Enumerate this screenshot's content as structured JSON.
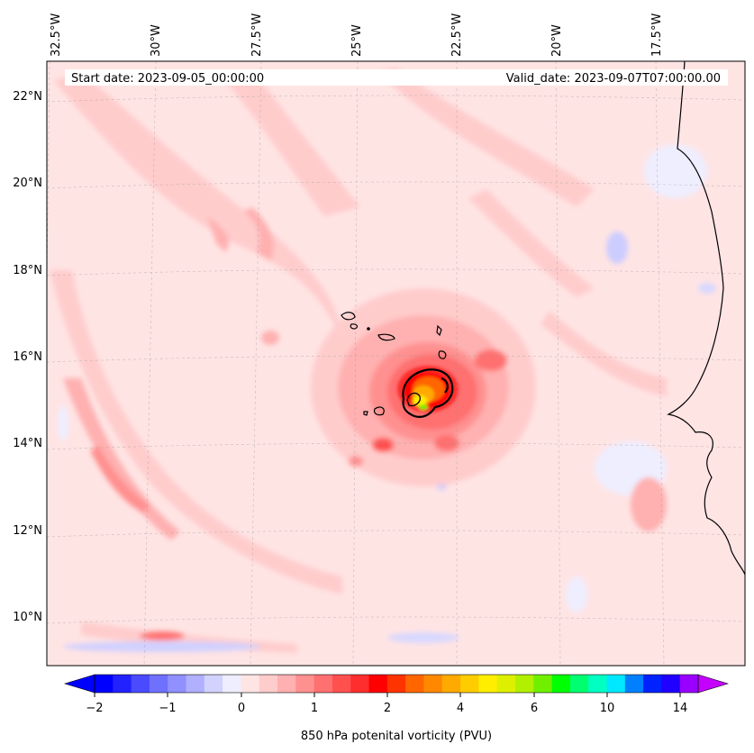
{
  "header": {
    "start_date": "Start date: 2023-09-05_00:00:00",
    "valid_date": "Valid_date: 2023-09-07T07:00:00.00"
  },
  "map": {
    "lon_labels": [
      "32.5°W",
      "30°W",
      "27.5°W",
      "25°W",
      "22.5°W",
      "20°W",
      "17.5°W"
    ],
    "lat_labels": [
      "22°N",
      "20°N",
      "18°N",
      "16°N",
      "14°N",
      "12°N",
      "10°N"
    ],
    "gridlines": "dashed",
    "field": "850 hPa potential vorticity, pink background with a strong vortex near 15°N 23°W"
  },
  "colorbar": {
    "title": "850 hPa potenital vorticity (PVU)",
    "tick_labels": [
      "−2",
      "−1",
      "0",
      "1",
      "2",
      "4",
      "6",
      "10",
      "14"
    ],
    "colors": [
      "#0000ff",
      "#2222ff",
      "#4a4aff",
      "#7070ff",
      "#9090ff",
      "#b0b0ff",
      "#d2d2ff",
      "#eeeeff",
      "#ffe4e4",
      "#ffcccc",
      "#ffb0b0",
      "#ff9090",
      "#ff7070",
      "#ff5050",
      "#ff2e2e",
      "#ff0000",
      "#ff3300",
      "#ff6600",
      "#ff8800",
      "#ffaa00",
      "#ffcc00",
      "#ffee00",
      "#ddf000",
      "#b0f000",
      "#70f000",
      "#00ff00",
      "#00ff70",
      "#00ffc0",
      "#00e8ff",
      "#0080ff",
      "#0022ff",
      "#2000ff",
      "#9a00ff"
    ],
    "under_color": "#0000ff",
    "over_color": "#c400ff"
  }
}
